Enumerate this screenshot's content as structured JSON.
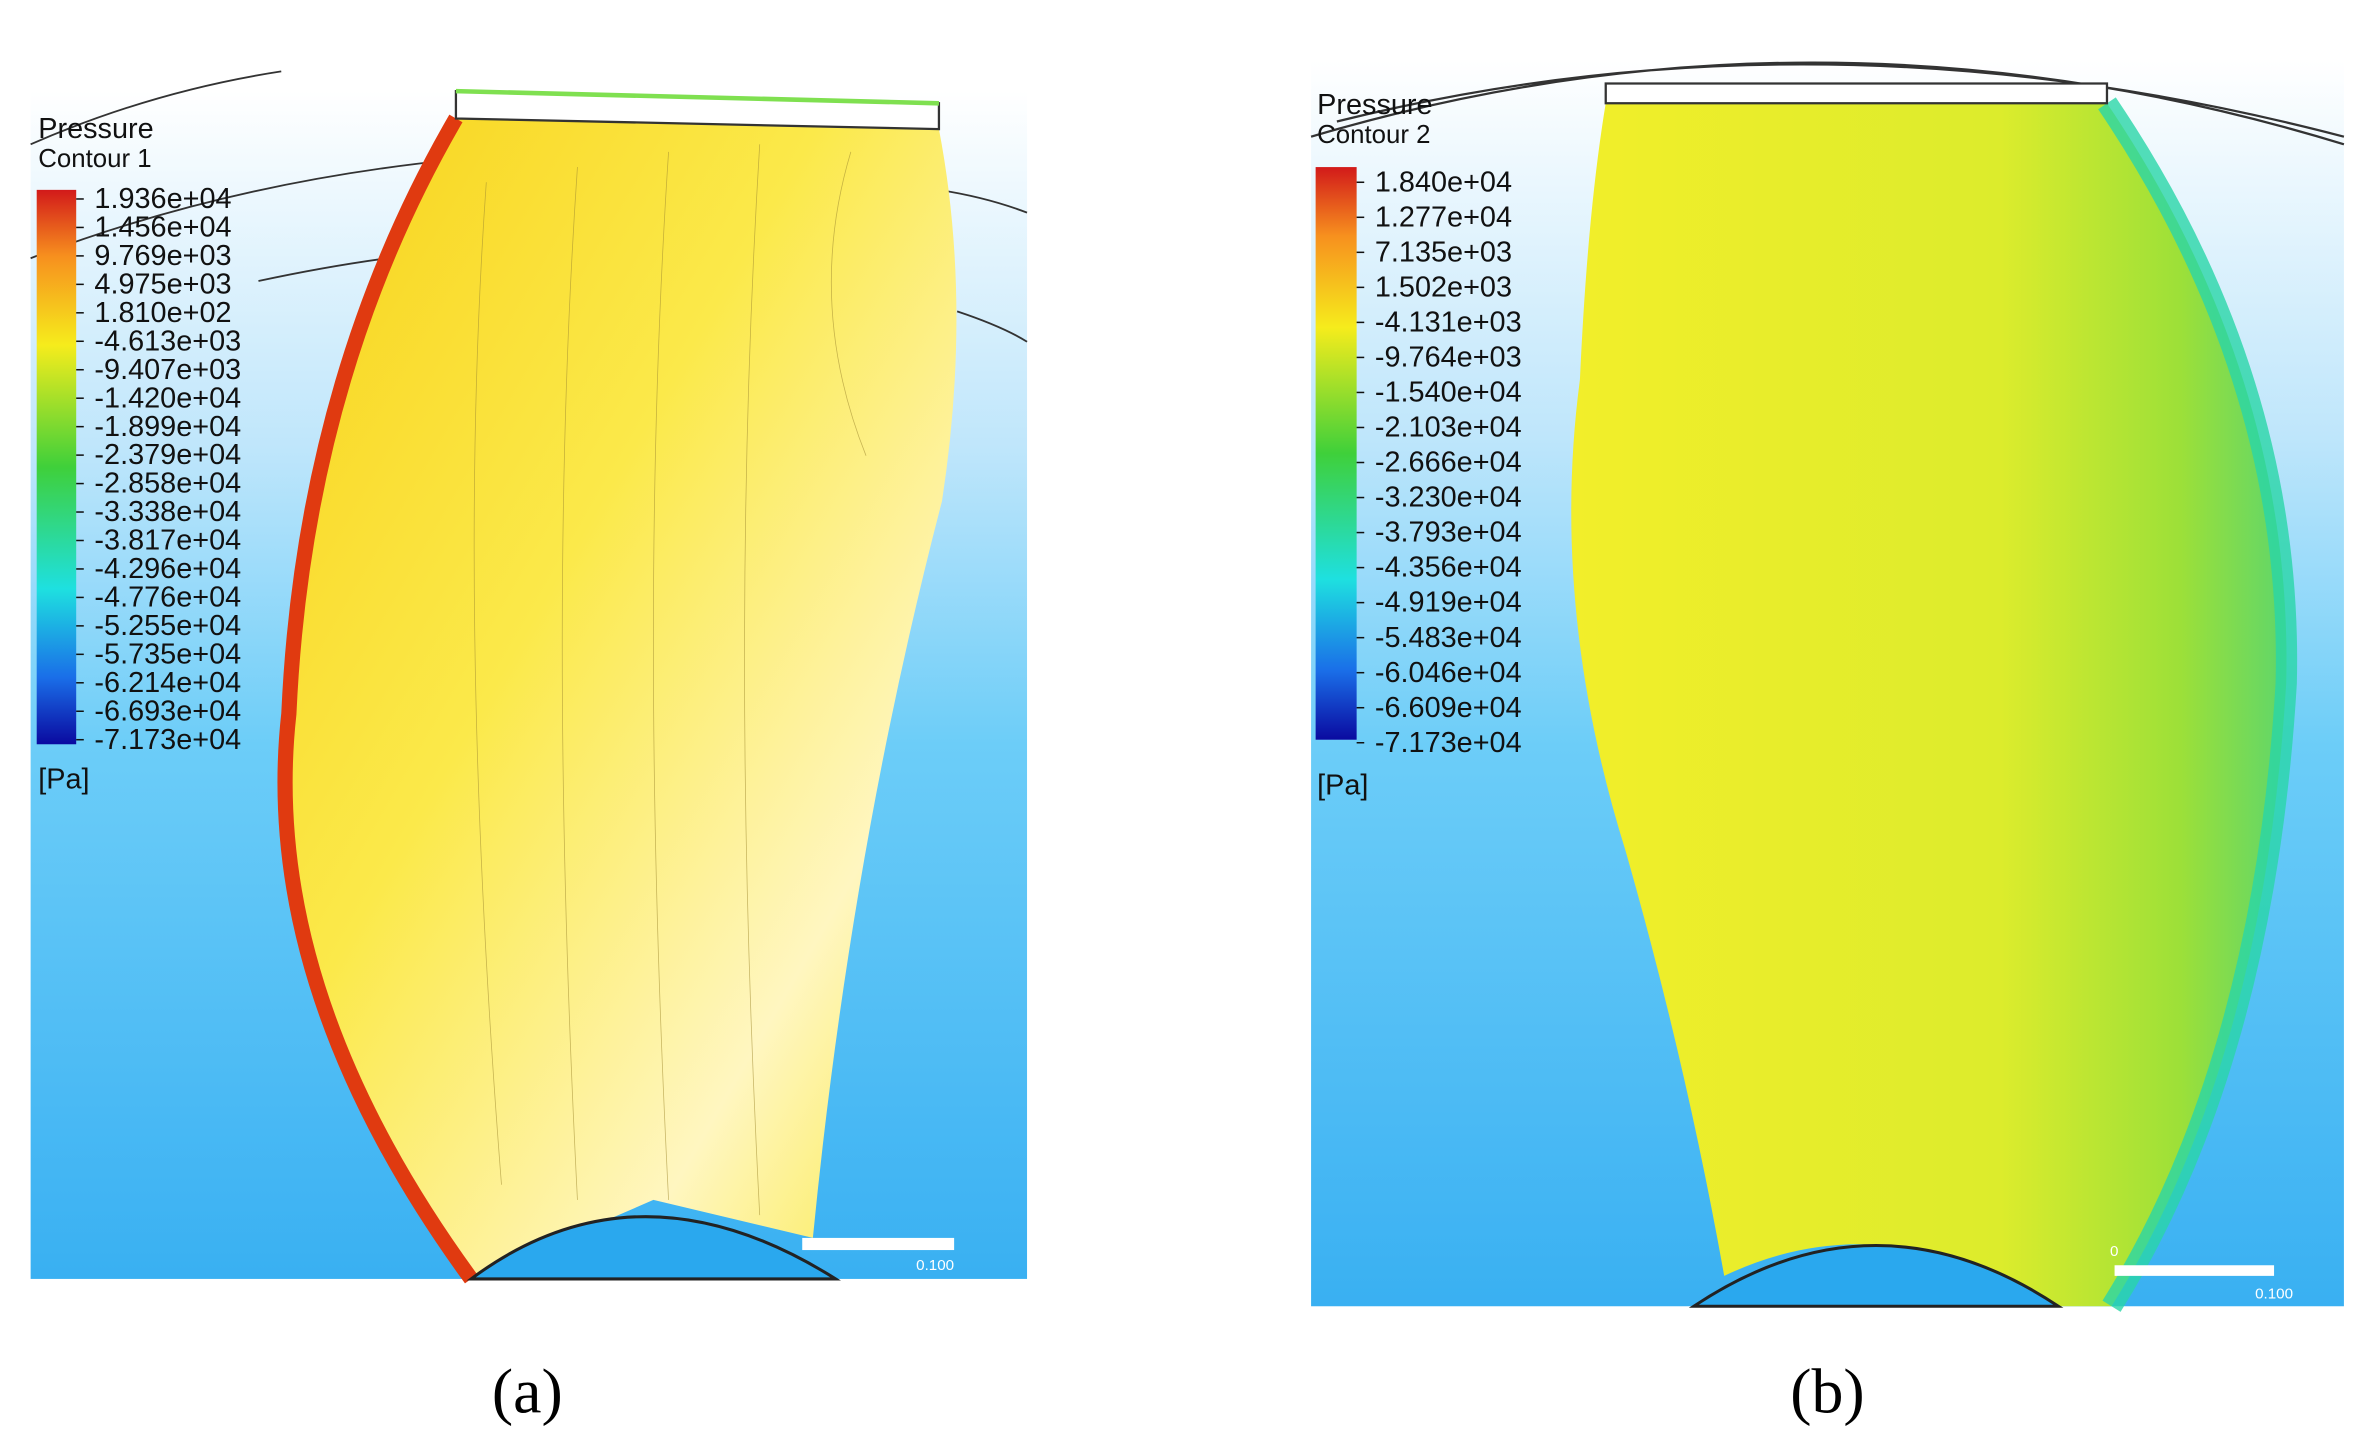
{
  "panels": [
    {
      "legend_title": "Pressure",
      "legend_subtitle": "Contour 1",
      "labels": [
        "1.936e+04",
        "1.456e+04",
        "9.769e+03",
        "4.975e+03",
        "1.810e+02",
        "-4.613e+03",
        "-9.407e+03",
        "-1.420e+04",
        "-1.899e+04",
        "-2.379e+04",
        "-2.858e+04",
        "-3.338e+04",
        "-3.817e+04",
        "-4.296e+04",
        "-4.776e+04",
        "-5.255e+04",
        "-5.735e+04",
        "-6.214e+04",
        "-6.693e+04",
        "-7.173e+04"
      ],
      "unit": "[Pa]",
      "scale_label": "0.100",
      "caption": "(a)"
    },
    {
      "legend_title": "Pressure",
      "legend_subtitle": "Contour 2",
      "labels": [
        "1.840e+04",
        "1.277e+04",
        "7.135e+03",
        "1.502e+03",
        "-4.131e+03",
        "-9.764e+03",
        "-1.540e+04",
        "-2.103e+04",
        "-2.666e+04",
        "-3.230e+04",
        "-3.793e+04",
        "-4.356e+04",
        "-4.919e+04",
        "-5.483e+04",
        "-6.046e+04",
        "-6.609e+04",
        "-7.173e+04"
      ],
      "unit": "[Pa]",
      "scale_zero": "0",
      "scale_label": "0.100",
      "caption": "(b)"
    }
  ]
}
